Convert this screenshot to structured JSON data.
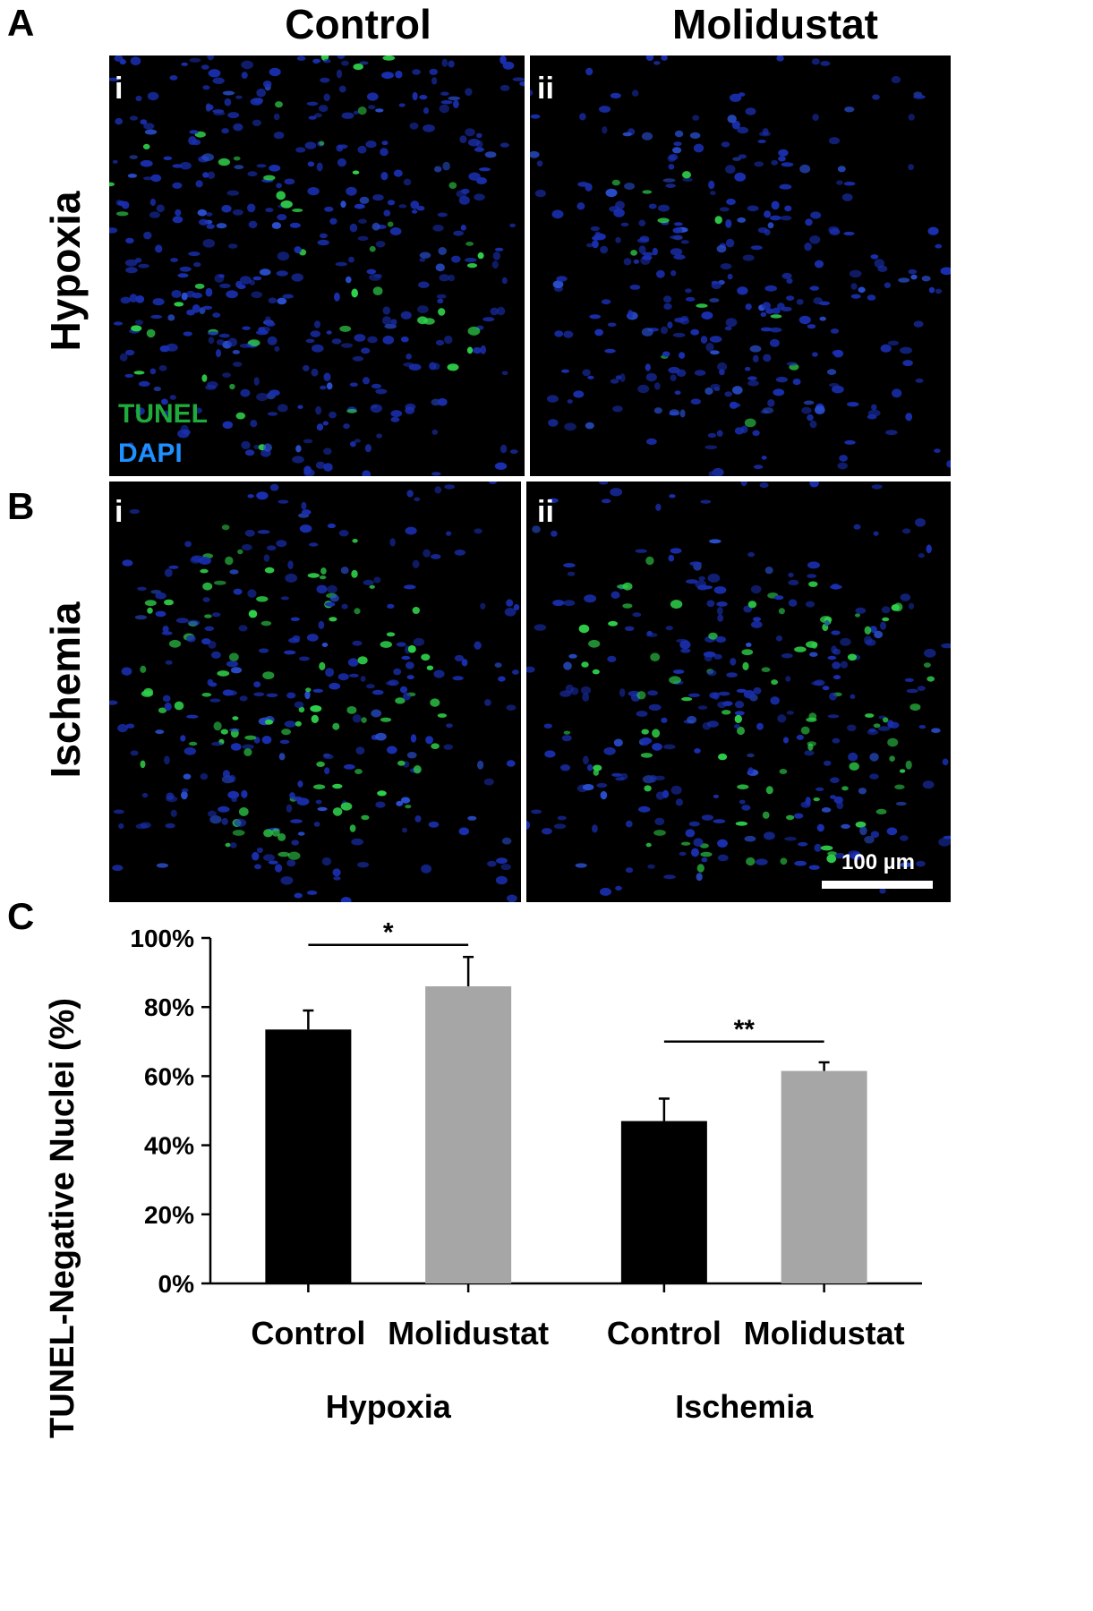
{
  "panels": {
    "A": {
      "letter": "A",
      "row_label": "Hypoxia",
      "images": [
        {
          "tag": "i"
        },
        {
          "tag": "ii"
        }
      ]
    },
    "B": {
      "letter": "B",
      "row_label": "Ischemia",
      "images": [
        {
          "tag": "i"
        },
        {
          "tag": "ii"
        }
      ]
    },
    "C": {
      "letter": "C"
    }
  },
  "columns": {
    "left": "Control",
    "right": "Molidustat"
  },
  "legend": {
    "tunel": {
      "label": "TUNEL",
      "color": "#1faa3c"
    },
    "dapi": {
      "label": "DAPI",
      "color": "#1e90ff"
    }
  },
  "scale_bar": {
    "label": "100 µm"
  },
  "chart_data": {
    "type": "bar",
    "ylabel": "TUNEL-Negative Nuclei (%)",
    "ylim": [
      0,
      100
    ],
    "yticks": [
      0,
      20,
      40,
      60,
      80,
      100
    ],
    "ytick_labels": [
      "0%",
      "20%",
      "40%",
      "60%",
      "80%",
      "100%"
    ],
    "groups": [
      "Hypoxia",
      "Ischemia"
    ],
    "categories": [
      "Control",
      "Molidustat",
      "Control",
      "Molidustat"
    ],
    "bar_groups": [
      "Hypoxia",
      "Hypoxia",
      "Ischemia",
      "Ischemia"
    ],
    "values": [
      73.5,
      86,
      47,
      61.5
    ],
    "errors": [
      5.5,
      8.5,
      6.5,
      2.5
    ],
    "colors": [
      "#000000",
      "#a6a6a6",
      "#000000",
      "#a6a6a6"
    ],
    "significance": [
      {
        "from": 0,
        "to": 1,
        "label": "*",
        "y": 98
      },
      {
        "from": 2,
        "to": 3,
        "label": "**",
        "y": 70
      }
    ]
  }
}
